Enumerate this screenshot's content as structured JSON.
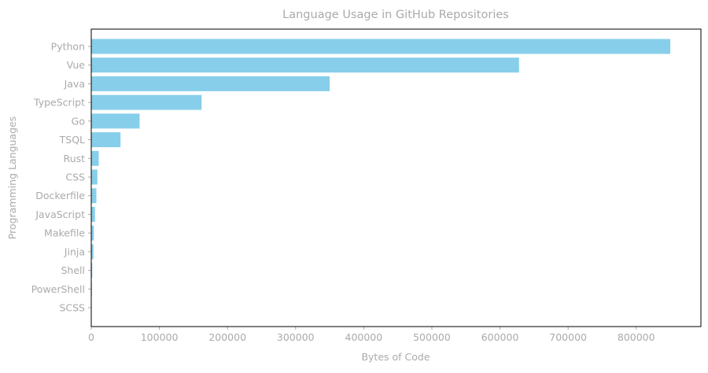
{
  "chart_data": {
    "type": "bar",
    "orientation": "horizontal",
    "title": "Language Usage in GitHub Repositories",
    "xlabel": "Bytes of Code",
    "ylabel": "Programming Languages",
    "categories": [
      "Python",
      "Vue",
      "Java",
      "TypeScript",
      "Go",
      "TSQL",
      "Rust",
      "CSS",
      "Dockerfile",
      "JavaScript",
      "Makefile",
      "Jinja",
      "Shell",
      "PowerShell",
      "SCSS"
    ],
    "values": [
      850000,
      628000,
      350000,
      162000,
      71000,
      43000,
      11000,
      9000,
      7500,
      5500,
      3800,
      3200,
      1500,
      900,
      300
    ],
    "xlim": [
      0,
      895000
    ],
    "xticks": [
      0,
      100000,
      200000,
      300000,
      400000,
      500000,
      600000,
      700000,
      800000
    ],
    "grid": false,
    "colors": {
      "bar": "#87ceeb",
      "text": "#aaaaaa",
      "axis": "#000000"
    }
  }
}
